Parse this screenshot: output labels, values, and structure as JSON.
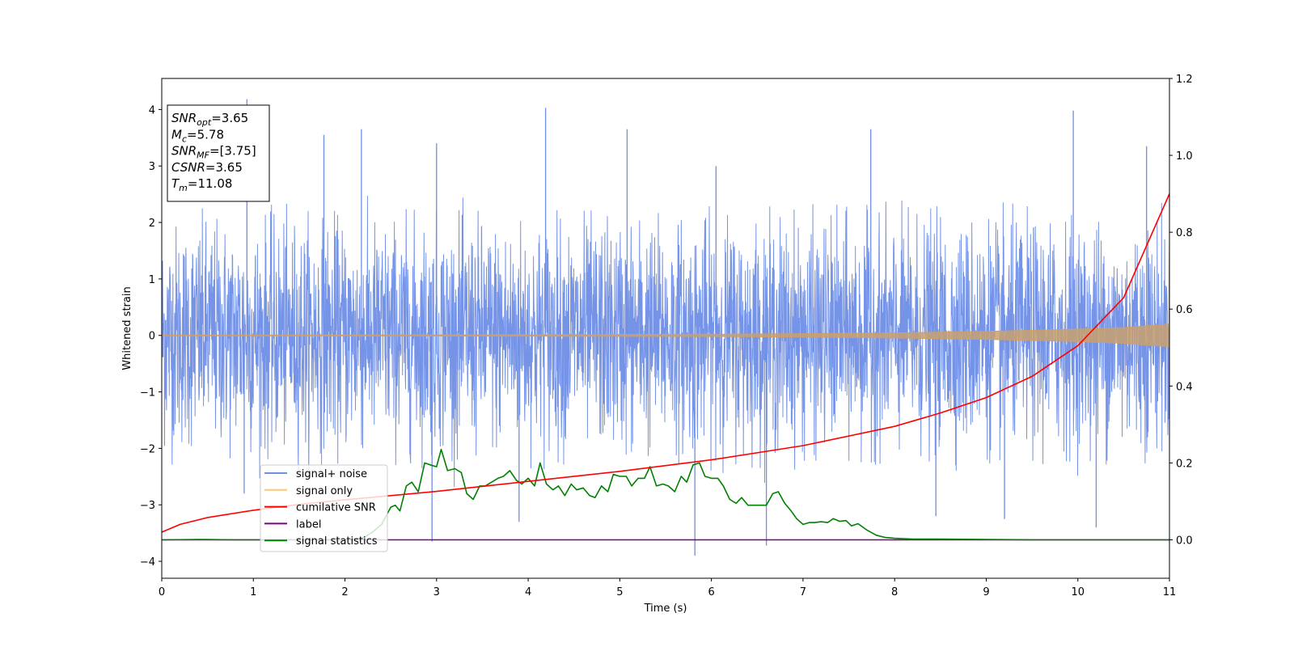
{
  "chart_data": {
    "type": "line",
    "xlabel": "Time (s)",
    "ylabel": "Whitened strain",
    "xlim": [
      0,
      11
    ],
    "ylim_left": [
      -4.3,
      4.55
    ],
    "ylim_right": [
      -0.1,
      1.2
    ],
    "x_ticks": [
      "0",
      "1",
      "2",
      "3",
      "4",
      "5",
      "6",
      "7",
      "8",
      "9",
      "10",
      "11"
    ],
    "y_ticks_left": [
      "−4",
      "−3",
      "−2",
      "−1",
      "0",
      "1",
      "2",
      "3",
      "4"
    ],
    "y_ticks_right": [
      "0.0",
      "0.2",
      "0.4",
      "0.6",
      "0.8",
      "1.0",
      "1.2"
    ],
    "grid": false,
    "legend_position": "lower-left",
    "legend": [
      {
        "label": "signal+ noise",
        "color": "#6f8ee6"
      },
      {
        "label": "signal only",
        "color": "#ffc870"
      },
      {
        "label": "cumilative SNR",
        "color": "#ff0000"
      },
      {
        "label": "label",
        "color": "#800080"
      },
      {
        "label": "signal statistics",
        "color": "#008000"
      }
    ],
    "info_box": [
      {
        "name": "SNR",
        "sub": "opt",
        "value": "=3.65"
      },
      {
        "name": "M",
        "sub": "c",
        "value": "=5.78"
      },
      {
        "name": "SNR",
        "sub": "MF",
        "value": "=[3.75]"
      },
      {
        "name": "CSNR",
        "sub": "",
        "value": "=3.65"
      },
      {
        "name": "T",
        "sub": "m",
        "value": "=11.08"
      }
    ],
    "series": [
      {
        "name": "signal+ noise",
        "axis": "left",
        "color": "#6f8ee6",
        "description_values": {
          "typical_min": -2.2,
          "typical_max": 2.2,
          "peak_max": 4.2,
          "peak_min": -3.9
        },
        "peaks": [
          [
            0.93,
            4.18
          ],
          [
            4.19,
            4.03
          ],
          [
            9.95,
            3.98
          ],
          [
            1.77,
            3.55
          ],
          [
            2.18,
            3.65
          ],
          [
            5.08,
            3.65
          ],
          [
            7.74,
            3.65
          ],
          [
            3.0,
            3.4
          ],
          [
            6.05,
            3.0
          ],
          [
            10.75,
            3.35
          ],
          [
            2.95,
            -3.65
          ],
          [
            5.82,
            -3.9
          ],
          [
            6.6,
            -3.72
          ],
          [
            9.2,
            -3.25
          ],
          [
            10.2,
            -3.4
          ],
          [
            3.9,
            -3.3
          ],
          [
            8.45,
            -3.2
          ],
          [
            0.9,
            -2.8
          ]
        ]
      },
      {
        "name": "signal only",
        "axis": "left",
        "color": "#ffc870",
        "envelope": [
          [
            0,
            0.005
          ],
          [
            2,
            0.008
          ],
          [
            4,
            0.012
          ],
          [
            6,
            0.02
          ],
          [
            7,
            0.03
          ],
          [
            8,
            0.045
          ],
          [
            9,
            0.07
          ],
          [
            9.5,
            0.09
          ],
          [
            10,
            0.11
          ],
          [
            10.5,
            0.14
          ],
          [
            11,
            0.2
          ]
        ]
      },
      {
        "name": "cumilative SNR",
        "axis": "right",
        "color": "#ff0000",
        "x": [
          0,
          0.2,
          0.5,
          1,
          1.5,
          2,
          3,
          4,
          5,
          6,
          7,
          8,
          8.5,
          9,
          9.5,
          10,
          10.5,
          11
        ],
        "y": [
          0.02,
          0.04,
          0.058,
          0.077,
          0.092,
          0.104,
          0.126,
          0.152,
          0.178,
          0.208,
          0.245,
          0.295,
          0.33,
          0.37,
          0.425,
          0.505,
          0.63,
          0.9
        ]
      },
      {
        "name": "label",
        "axis": "right",
        "color": "#800080",
        "x": [
          0,
          11
        ],
        "y": [
          0,
          0
        ]
      },
      {
        "name": "signal statistics",
        "axis": "right",
        "color": "#008000",
        "x": [
          0,
          0.4,
          0.8,
          1.2,
          1.6,
          2.0,
          2.2,
          2.3,
          2.4,
          2.5,
          2.55,
          2.6,
          2.67,
          2.73,
          2.8,
          2.87,
          2.93,
          3.0,
          3.05,
          3.12,
          3.2,
          3.27,
          3.33,
          3.4,
          3.47,
          3.53,
          3.6,
          3.67,
          3.73,
          3.8,
          3.87,
          3.93,
          4.0,
          4.07,
          4.13,
          4.2,
          4.27,
          4.33,
          4.4,
          4.47,
          4.53,
          4.6,
          4.67,
          4.73,
          4.8,
          4.87,
          4.93,
          5.0,
          5.07,
          5.13,
          5.2,
          5.27,
          5.33,
          5.4,
          5.47,
          5.53,
          5.6,
          5.67,
          5.73,
          5.8,
          5.87,
          5.93,
          6.0,
          6.07,
          6.13,
          6.2,
          6.27,
          6.33,
          6.4,
          6.47,
          6.53,
          6.6,
          6.67,
          6.73,
          6.8,
          6.87,
          6.93,
          7.0,
          7.07,
          7.13,
          7.2,
          7.27,
          7.33,
          7.4,
          7.47,
          7.53,
          7.6,
          7.7,
          7.8,
          7.9,
          8.0,
          8.2,
          8.5,
          9.0,
          9.5,
          10.0,
          11.0
        ],
        "y": [
          0.0,
          0.001,
          0.0,
          0.0,
          0.0,
          0.0,
          0.005,
          0.02,
          0.04,
          0.085,
          0.09,
          0.075,
          0.14,
          0.15,
          0.125,
          0.2,
          0.195,
          0.19,
          0.235,
          0.18,
          0.185,
          0.175,
          0.12,
          0.105,
          0.14,
          0.14,
          0.15,
          0.16,
          0.165,
          0.18,
          0.155,
          0.145,
          0.16,
          0.14,
          0.2,
          0.145,
          0.13,
          0.14,
          0.115,
          0.145,
          0.13,
          0.135,
          0.115,
          0.11,
          0.14,
          0.125,
          0.17,
          0.165,
          0.165,
          0.14,
          0.16,
          0.16,
          0.19,
          0.14,
          0.145,
          0.14,
          0.125,
          0.165,
          0.15,
          0.195,
          0.2,
          0.165,
          0.16,
          0.16,
          0.14,
          0.105,
          0.095,
          0.11,
          0.09,
          0.09,
          0.09,
          0.09,
          0.12,
          0.125,
          0.095,
          0.075,
          0.055,
          0.04,
          0.045,
          0.045,
          0.047,
          0.045,
          0.055,
          0.048,
          0.05,
          0.036,
          0.042,
          0.025,
          0.012,
          0.006,
          0.004,
          0.002,
          0.002,
          0.001,
          0.0,
          0.0,
          0.0
        ]
      }
    ]
  }
}
